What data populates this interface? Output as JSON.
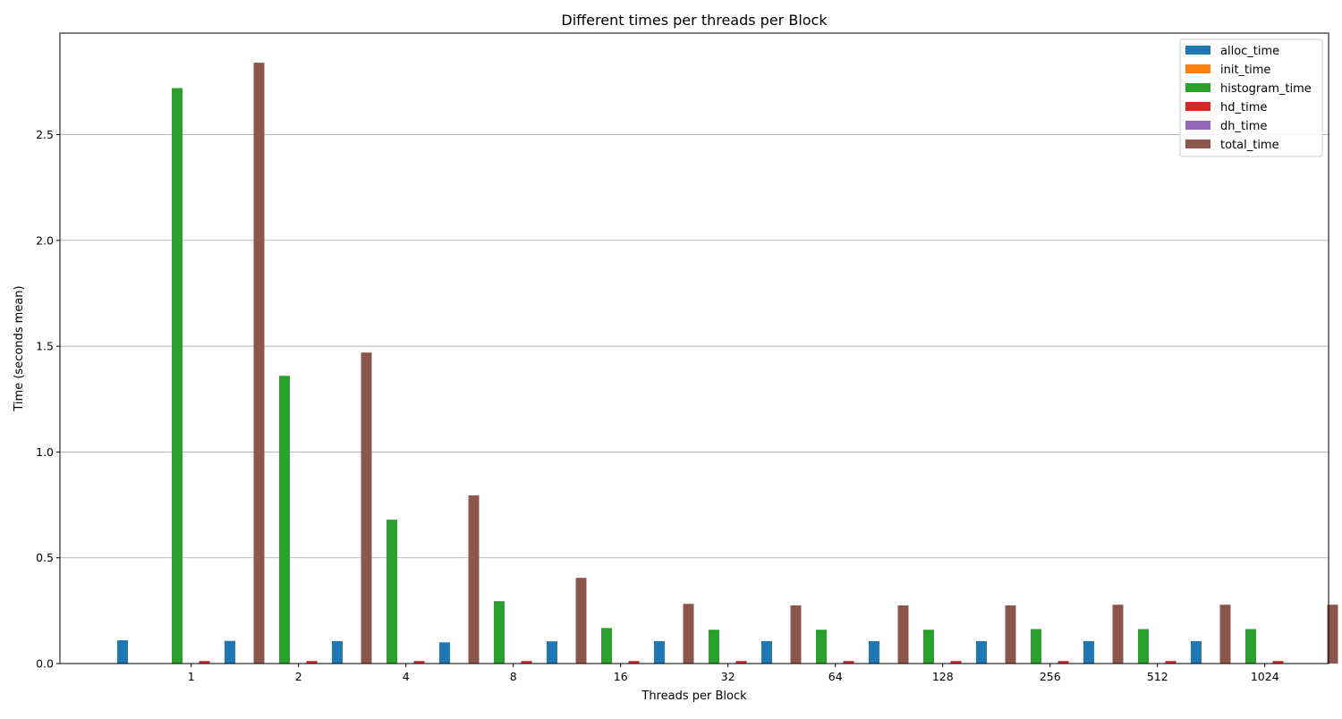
{
  "chart_data": {
    "type": "bar",
    "title": "Different times per threads per Block",
    "xlabel": "Threads per Block",
    "ylabel": "Time (seconds mean)",
    "categories": [
      "1",
      "2",
      "4",
      "8",
      "16",
      "32",
      "64",
      "128",
      "256",
      "512",
      "1024"
    ],
    "ylim": [
      0,
      2.98
    ],
    "yticks": [
      0.0,
      0.5,
      1.0,
      1.5,
      2.0,
      2.5
    ],
    "ytick_labels": [
      "0.0",
      "0.5",
      "1.0",
      "1.5",
      "2.0",
      "2.5"
    ],
    "grid": "y",
    "legend": "top-right",
    "series": [
      {
        "name": "alloc_time",
        "color": "#1f77b4",
        "values": [
          0.11,
          0.107,
          0.106,
          0.1,
          0.105,
          0.106,
          0.106,
          0.106,
          0.106,
          0.106,
          0.106
        ]
      },
      {
        "name": "init_time",
        "color": "#ff7f0e",
        "values": [
          0.0003,
          0.0003,
          0.0003,
          0.0003,
          0.0003,
          0.0003,
          0.0003,
          0.0003,
          0.0003,
          0.0003,
          0.0003
        ]
      },
      {
        "name": "histogram_time",
        "color": "#2ca02c",
        "values": [
          2.72,
          1.36,
          0.68,
          0.295,
          0.168,
          0.16,
          0.16,
          0.16,
          0.163,
          0.163,
          0.163
        ]
      },
      {
        "name": "hd_time",
        "color": "#d62728",
        "values": [
          0.012,
          0.012,
          0.012,
          0.012,
          0.012,
          0.012,
          0.012,
          0.012,
          0.012,
          0.012,
          0.012
        ]
      },
      {
        "name": "dh_time",
        "color": "#9467bd",
        "values": [
          0.0003,
          0.0003,
          0.0003,
          0.0003,
          0.0003,
          0.0003,
          0.0003,
          0.0003,
          0.0003,
          0.0003,
          0.0003
        ]
      },
      {
        "name": "total_time",
        "color": "#8c564b",
        "values": [
          2.84,
          1.47,
          0.795,
          0.405,
          0.282,
          0.275,
          0.275,
          0.275,
          0.278,
          0.278,
          0.278
        ]
      }
    ]
  }
}
